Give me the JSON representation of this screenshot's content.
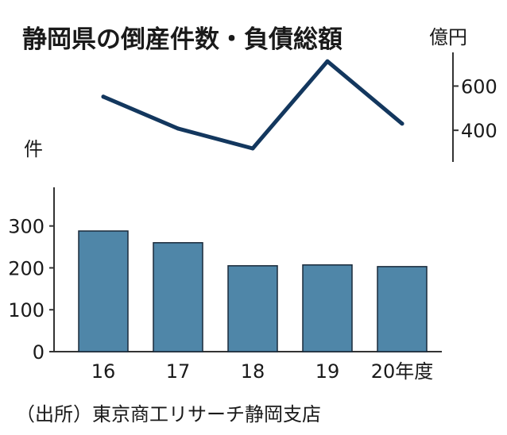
{
  "chart_data": [
    {
      "type": "line",
      "title": "静岡県の倒産件数・負債総額",
      "unit_label": "億円",
      "categories": [
        "16",
        "17",
        "18",
        "19",
        "20年度"
      ],
      "values": [
        552,
        408,
        318,
        712,
        430
      ],
      "ylim": [
        300,
        720
      ],
      "yticks": [
        "400",
        "600"
      ],
      "ytick_values": [
        400,
        600
      ],
      "color": "#13375e"
    },
    {
      "type": "bar",
      "unit_label": "件",
      "categories": [
        "16",
        "17",
        "18",
        "19",
        "20年度"
      ],
      "values": [
        288,
        260,
        205,
        207,
        203
      ],
      "ylim": [
        0,
        360
      ],
      "yticks": [
        "0",
        "100",
        "200",
        "300"
      ],
      "ytick_values": [
        0,
        100,
        200,
        300
      ],
      "color": "#4f86a8"
    }
  ],
  "source": "（出所）東京商工リサーチ静岡支店"
}
